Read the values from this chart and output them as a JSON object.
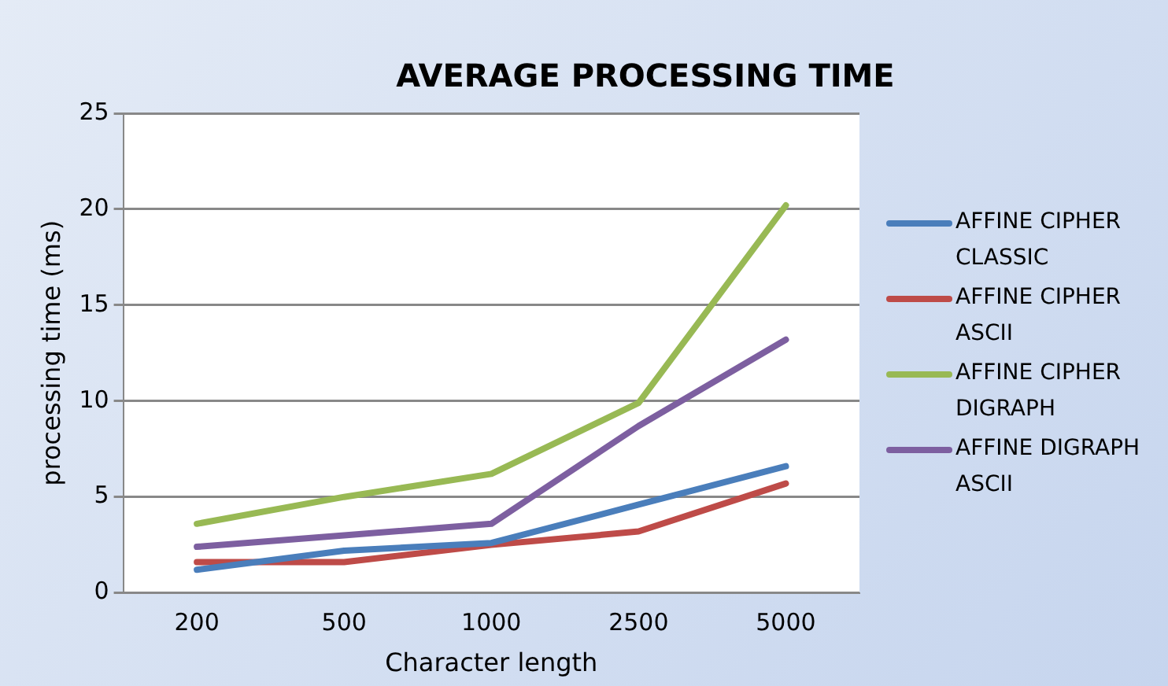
{
  "chart_data": {
    "type": "line",
    "title": "AVERAGE PROCESSING TIME",
    "xlabel": "Character length",
    "ylabel": "processing time (ms)",
    "categories": [
      "200",
      "500",
      "1000",
      "2500",
      "5000"
    ],
    "series": [
      {
        "name": "AFFINE CIPHER CLASSIC",
        "color": "#4a7ebb",
        "values": [
          1.2,
          2.2,
          2.6,
          4.6,
          6.6
        ]
      },
      {
        "name": "AFFINE CIPHER ASCII",
        "color": "#be4b48",
        "values": [
          1.6,
          1.6,
          2.5,
          3.2,
          5.7
        ]
      },
      {
        "name": "AFFINE CIPHER DIGRAPH",
        "color": "#98b954",
        "values": [
          3.6,
          5.0,
          6.2,
          9.9,
          20.2
        ]
      },
      {
        "name": "AFFINE DIGRAPH ASCII",
        "color": "#7d5fa0",
        "values": [
          2.4,
          3.0,
          3.6,
          8.7,
          13.2
        ]
      }
    ],
    "ylim": [
      0,
      25
    ],
    "yticks": [
      0,
      5,
      10,
      15,
      20,
      25
    ],
    "grid": "y",
    "legend": "right",
    "marker": "none",
    "line_style": "solid"
  }
}
